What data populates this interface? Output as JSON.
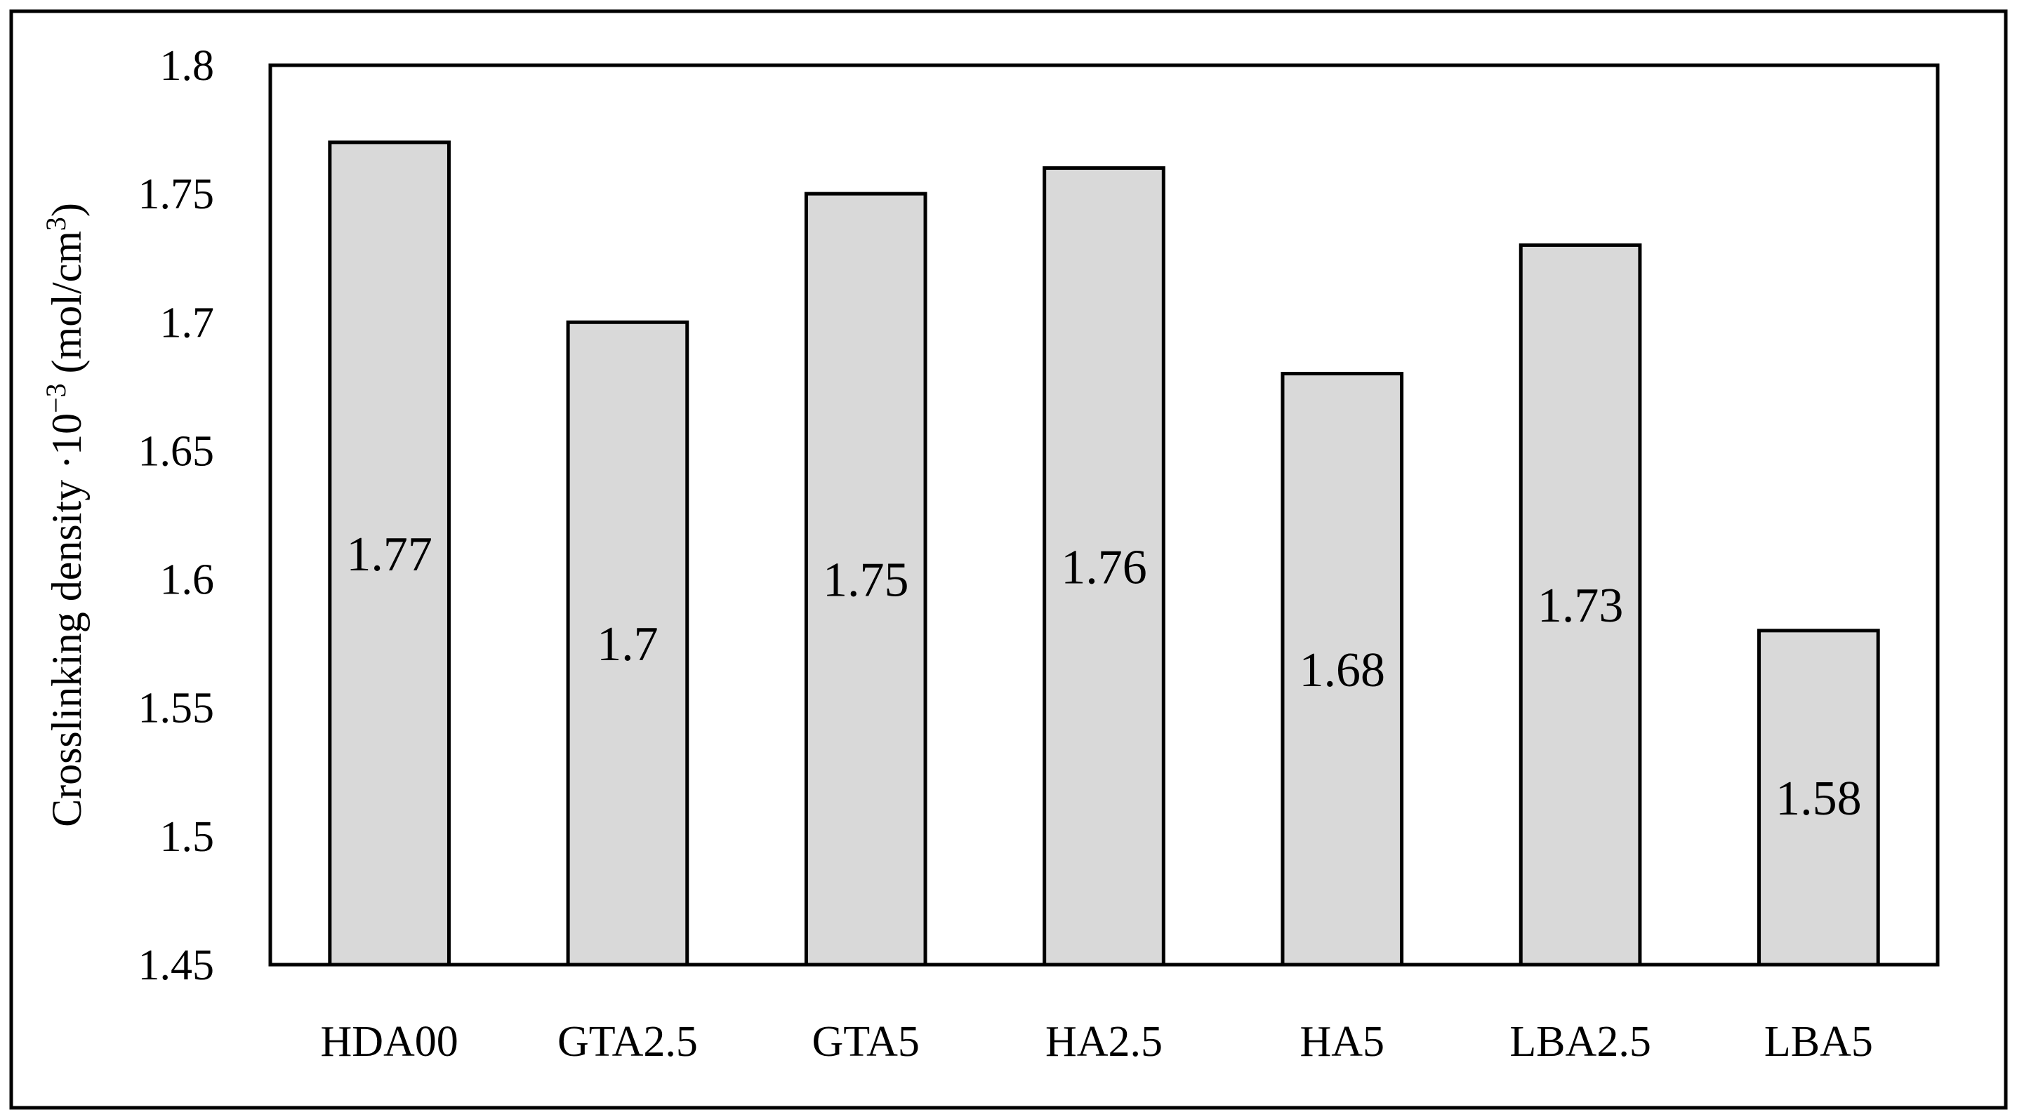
{
  "chart_data": {
    "type": "bar",
    "title": "",
    "xlabel": "",
    "ylabel": "Crosslinking density ·10",
    "ylabel_exponent": "−3",
    "ylabel_unit_open": "(mol/cm",
    "ylabel_unit_exponent": "3",
    "ylabel_unit_close": ")",
    "categories": [
      "HDA00",
      "GTA2.5",
      "GTA5",
      "HA2.5",
      "HA5",
      "LBA2.5",
      "LBA5"
    ],
    "values": [
      1.77,
      1.7,
      1.75,
      1.76,
      1.68,
      1.73,
      1.58
    ],
    "data_labels": [
      "1.77",
      "1.7",
      "1.75",
      "1.76",
      "1.68",
      "1.73",
      "1.58"
    ],
    "ylim": [
      1.45,
      1.8
    ],
    "yticks": [
      1.45,
      1.5,
      1.55,
      1.6,
      1.65,
      1.7,
      1.75,
      1.8
    ],
    "ytick_labels": [
      "1.45",
      "1.5",
      "1.55",
      "1.6",
      "1.65",
      "1.7",
      "1.75",
      "1.8"
    ],
    "grid": false,
    "legend": "none",
    "bar_color": "#d9d9d9",
    "bar_edge_color": "#000000"
  }
}
